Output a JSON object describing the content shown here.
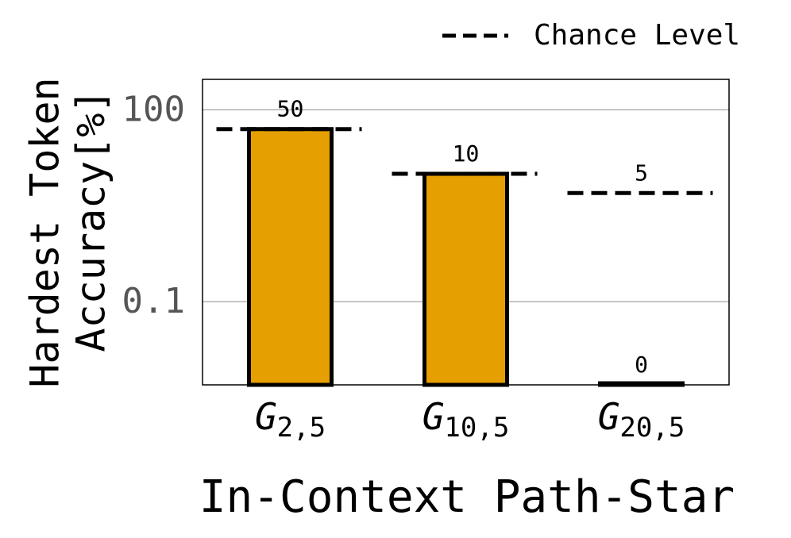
{
  "chart_data": {
    "type": "bar",
    "ylabel": [
      "Hardest Token",
      "Accuracy[%]"
    ],
    "xlabel": "In-Context Path-Star",
    "categories": [
      {
        "base": "G",
        "sub": "2,5"
      },
      {
        "base": "G",
        "sub": "10,5"
      },
      {
        "base": "G",
        "sub": "20,5"
      }
    ],
    "series": [
      {
        "name": "Accuracy",
        "color": "#e69f00",
        "values": [
          50,
          10,
          0
        ]
      },
      {
        "name": "Chance Level",
        "color": "#000000",
        "values": [
          50,
          10,
          5
        ]
      }
    ],
    "ylim": [
      0.005,
      300
    ],
    "yticks": [
      0.1,
      100
    ],
    "log_y": true,
    "grid": true,
    "legend": "top-right"
  }
}
